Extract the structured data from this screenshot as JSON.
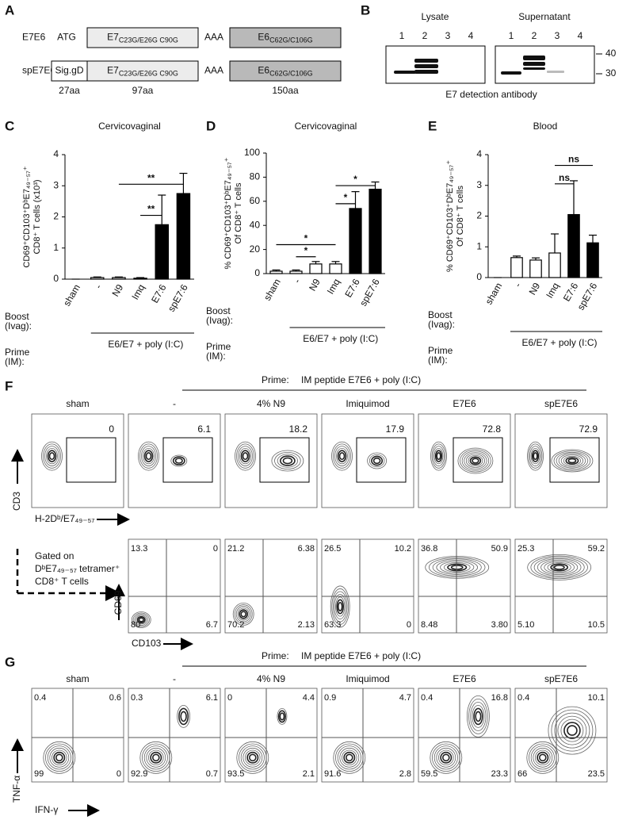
{
  "panel_a": {
    "label": "A",
    "constructs": [
      {
        "name": "E7E6",
        "start": "ATG",
        "e7": "E7",
        "e7_sub": "C23G/E26G C90G",
        "linker": "AAA",
        "e6": "E6",
        "e6_sub": "C62G/C106G"
      },
      {
        "name": "spE7E6",
        "signal": "Sig.gD",
        "e7": "E7",
        "e7_sub": "C23G/E26G C90G",
        "linker": "AAA",
        "e6": "E6",
        "e6_sub": "C62G/C106G"
      }
    ],
    "lengths": [
      "27aa",
      "97aa",
      "150aa"
    ]
  },
  "panel_b": {
    "label": "B",
    "blots": [
      {
        "title": "Lysate",
        "lanes": [
          "1",
          "2",
          "3",
          "4"
        ]
      },
      {
        "title": "Supernatant",
        "lanes": [
          "1",
          "2",
          "3",
          "4"
        ]
      }
    ],
    "markers": [
      "40",
      "30"
    ],
    "caption": "E7 detection antibody"
  },
  "chart_data": [
    {
      "type": "bar",
      "panel": "C",
      "title": "Cervicovaginal",
      "ylabel": [
        "CD69⁺CD103⁺DᵇE7₄₉₋₅₇⁺",
        "CD8⁺ T cells (x10³)"
      ],
      "categories": [
        "sham",
        "-",
        "N9",
        "Imq",
        "E7:6",
        "spE7:6"
      ],
      "values": [
        0,
        0.05,
        0.05,
        0.03,
        1.75,
        2.75
      ],
      "errors": [
        0,
        0.02,
        0.02,
        0.02,
        0.95,
        0.65
      ],
      "colors": [
        "#ffffff",
        "#ffffff",
        "#ffffff",
        "#ffffff",
        "#000000",
        "#000000"
      ],
      "ylim": [
        0,
        4
      ],
      "yticks": [
        0,
        1,
        2,
        3,
        4
      ],
      "annotations": [
        {
          "from": 3,
          "to": 4,
          "y": 2.05,
          "label": "**"
        },
        {
          "from": 2,
          "to": 5,
          "y": 3.05,
          "label": "**"
        }
      ],
      "boost_label": [
        "Boost",
        "(Ivag):"
      ],
      "prime_label": [
        "Prime",
        "(IM):"
      ],
      "prime_text": "E6/E7 + poly (I:C)"
    },
    {
      "type": "bar",
      "panel": "D",
      "title": "Cervicovaginal",
      "ylabel": [
        "% CD69⁺CD103⁺DᵇE7₄₉₋₅₇⁺",
        "Of CD8⁺ T cells"
      ],
      "categories": [
        "sham",
        "-",
        "N9",
        "Imq",
        "E7:6",
        "spE7:6"
      ],
      "values": [
        2,
        2,
        8,
        8,
        54,
        70
      ],
      "errors": [
        1,
        1,
        2,
        2,
        14,
        6
      ],
      "colors": [
        "#ffffff",
        "#ffffff",
        "#ffffff",
        "#ffffff",
        "#000000",
        "#000000"
      ],
      "ylim": [
        0,
        100
      ],
      "yticks": [
        0,
        20,
        40,
        60,
        80,
        100
      ],
      "annotations": [
        {
          "from": 1,
          "to": 2,
          "y": 14,
          "label": "*"
        },
        {
          "from": 0,
          "to": 3,
          "y": 24,
          "label": "*"
        },
        {
          "from": 3,
          "to": 4,
          "y": 58,
          "label": "*"
        },
        {
          "from": 3,
          "to": 5,
          "y": 73,
          "label": "*"
        }
      ],
      "boost_label": [
        "Boost",
        "(Ivag):"
      ],
      "prime_label": [
        "Prime",
        "(IM):"
      ],
      "prime_text": "E6/E7 + poly (I:C)"
    },
    {
      "type": "bar",
      "panel": "E",
      "title": "Blood",
      "ylabel": [
        "% CD69⁺CD103⁺DᵇE7₄₉₋₅₇⁺",
        "Of CD8⁺ T cells"
      ],
      "categories": [
        "sham",
        "-",
        "N9",
        "Imq",
        "E7:6",
        "spE7:6"
      ],
      "values": [
        0,
        0.65,
        0.57,
        0.8,
        2.05,
        1.13
      ],
      "errors": [
        0,
        0.05,
        0.07,
        0.62,
        1.1,
        0.25
      ],
      "colors": [
        "#ffffff",
        "#ffffff",
        "#ffffff",
        "#ffffff",
        "#000000",
        "#000000"
      ],
      "ylim": [
        0,
        4
      ],
      "yticks": [
        0,
        1,
        2,
        3,
        4
      ],
      "annotations": [
        {
          "from": 3,
          "to": 4,
          "y": 3.05,
          "label": "ns"
        },
        {
          "from": 3,
          "to": 5,
          "y": 3.65,
          "label": "ns"
        }
      ],
      "boost_label": [
        "Boost",
        "(Ivag):"
      ],
      "prime_label": [
        "Prime",
        "(IM):"
      ],
      "prime_text": "E6/E7 + poly (I:C)"
    }
  ],
  "panel_f": {
    "label": "F",
    "prime": "Prime:",
    "prime_text": "IM peptide E7E6 + poly (I:C)",
    "columns": [
      "sham",
      "-",
      "4% N9",
      "Imiquimod",
      "E7E6",
      "spE7E6"
    ],
    "top_values": [
      "0",
      "6.1",
      "18.2",
      "17.9",
      "72.8",
      "72.9"
    ],
    "top_y_axis": "CD3",
    "top_x_axis": "H-2Dᵇ/E7₄₉₋₅₇",
    "gated_on": [
      "Gated on",
      "DᵇE7₄₉₋₅₇ tetramer⁺",
      "CD8⁺ T cells"
    ],
    "quadrants": [
      [
        "13.3",
        "0",
        "80",
        "6.7"
      ],
      [
        "21.2",
        "6.38",
        "70.2",
        "2.13"
      ],
      [
        "26.5",
        "10.2",
        "63.3",
        "0"
      ],
      [
        "36.8",
        "50.9",
        "8.48",
        "3.80"
      ],
      [
        "25.3",
        "59.2",
        "5.10",
        "10.5"
      ]
    ],
    "bottom_y_axis": "CD69",
    "bottom_x_axis": "CD103"
  },
  "panel_g": {
    "label": "G",
    "prime": "Prime:",
    "prime_text": "IM peptide E7E6 + poly (I:C)",
    "columns": [
      "sham",
      "-",
      "4% N9",
      "Imiquimod",
      "E7E6",
      "spE7E6"
    ],
    "quadrants": [
      [
        "0.4",
        "0.6",
        "99",
        "0"
      ],
      [
        "0.3",
        "6.1",
        "92.9",
        "0.7"
      ],
      [
        "0",
        "4.4",
        "93.5",
        "2.1"
      ],
      [
        "0.9",
        "4.7",
        "91.6",
        "2.8"
      ],
      [
        "0.4",
        "16.8",
        "59.5",
        "23.3"
      ],
      [
        "0.4",
        "10.1",
        "66",
        "23.5"
      ]
    ],
    "y_axis": "TNF-α",
    "x_axis": "IFN-γ"
  }
}
